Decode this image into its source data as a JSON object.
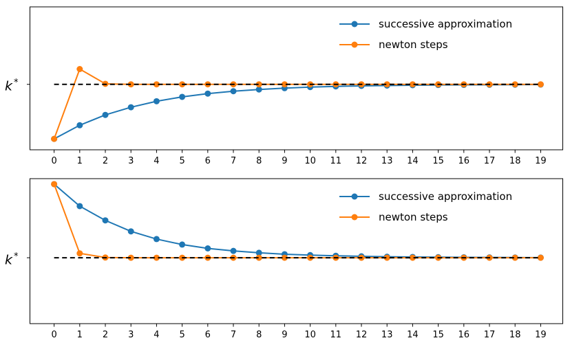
{
  "figure": {
    "background": "#ffffff",
    "colors": {
      "successive": "#1f77b4",
      "newton": "#ff7f0e",
      "reference": "#000000",
      "axis": "#000000"
    },
    "ylabel": {
      "base": "k",
      "sup": "*"
    }
  },
  "legend": {
    "items": [
      {
        "label": "successive approximation",
        "color_key": "successive"
      },
      {
        "label": "newton steps",
        "color_key": "newton"
      }
    ]
  },
  "chart_data": [
    {
      "type": "line",
      "panel": "top",
      "title": "",
      "xlabel": "",
      "ylabel": "k*",
      "x": [
        0,
        1,
        2,
        3,
        4,
        5,
        6,
        7,
        8,
        9,
        10,
        11,
        12,
        13,
        14,
        15,
        16,
        17,
        18,
        19
      ],
      "xlim": [
        -0.944,
        19.863
      ],
      "ylim": [
        0.4,
        1.71
      ],
      "grid": false,
      "legend_position": "upper right",
      "marker": "circle",
      "marker_size": 9,
      "line_width": 2,
      "series": [
        {
          "name": "successive approximation",
          "color_key": "successive",
          "values": [
            0.5,
            0.625,
            0.72,
            0.79,
            0.845,
            0.885,
            0.915,
            0.937,
            0.953,
            0.965,
            0.975,
            0.981,
            0.986,
            0.989,
            0.992,
            0.994,
            0.995,
            0.996,
            0.997,
            0.998
          ]
        },
        {
          "name": "newton steps",
          "color_key": "newton",
          "values": [
            0.5,
            1.14,
            1.005,
            1.0,
            1.0,
            1.0,
            1.0,
            1.0,
            1.0,
            1.0,
            1.0,
            1.0,
            1.0,
            1.0,
            1.0,
            1.0,
            1.0,
            1.0,
            1.0,
            1.0
          ]
        }
      ],
      "reference_line": {
        "label": "k*",
        "value": 1.0,
        "style": "dashed",
        "color_key": "reference",
        "x_start": 0,
        "x_end": 19
      }
    },
    {
      "type": "line",
      "panel": "bottom",
      "title": "",
      "xlabel": "",
      "ylabel": "k*",
      "x": [
        0,
        1,
        2,
        3,
        4,
        5,
        6,
        7,
        8,
        9,
        10,
        11,
        12,
        13,
        14,
        15,
        16,
        17,
        18,
        19
      ],
      "xlim": [
        -0.944,
        19.863
      ],
      "ylim": [
        0.4,
        1.72
      ],
      "grid": false,
      "legend_position": "upper right",
      "marker": "circle",
      "marker_size": 9,
      "line_width": 2,
      "series": [
        {
          "name": "successive approximation",
          "color_key": "successive",
          "values": [
            1.67,
            1.47,
            1.34,
            1.24,
            1.17,
            1.12,
            1.085,
            1.062,
            1.045,
            1.032,
            1.024,
            1.018,
            1.013,
            1.009,
            1.007,
            1.005,
            1.004,
            1.003,
            1.002,
            1.001
          ]
        },
        {
          "name": "newton steps",
          "color_key": "newton",
          "values": [
            1.67,
            1.04,
            1.002,
            1.0,
            1.0,
            1.0,
            1.0,
            1.0,
            1.0,
            1.0,
            1.0,
            1.0,
            1.0,
            1.0,
            1.0,
            1.0,
            1.0,
            1.0,
            1.0,
            1.0
          ]
        }
      ],
      "reference_line": {
        "label": "k*",
        "value": 1.0,
        "style": "dashed",
        "color_key": "reference",
        "x_start": 0,
        "x_end": 19
      }
    }
  ]
}
